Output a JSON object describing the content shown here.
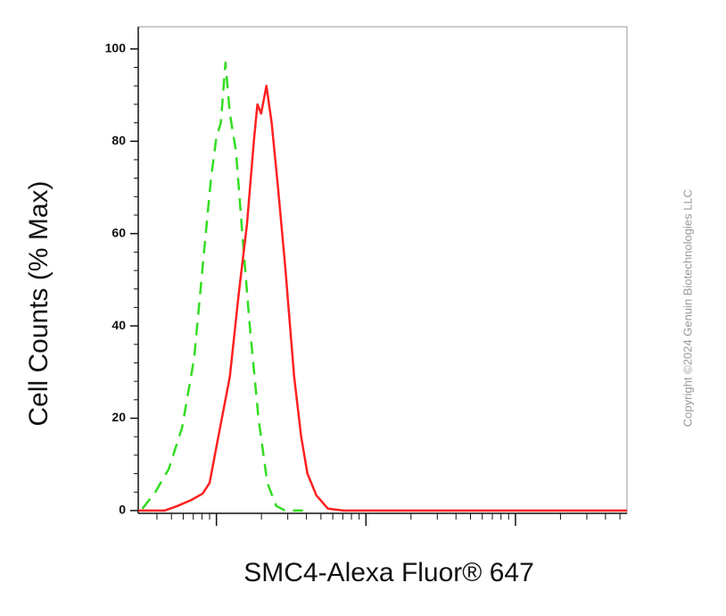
{
  "chart_data": {
    "type": "line",
    "xlabel": "SMC4-Alexa Fluor® 647",
    "ylabel": "Cell Counts (% Max)",
    "watermark": "Copyright ©2024 Genuin Biotechnologies LLC",
    "xscale": "log",
    "xlim": [
      3.0,
      5570
    ],
    "xticks": [
      10,
      100,
      1000
    ],
    "xminorticks": [
      4,
      5,
      6,
      7,
      8,
      9,
      20,
      30,
      40,
      50,
      60,
      70,
      80,
      90,
      200,
      300,
      400,
      500,
      600,
      700,
      800,
      900,
      2000,
      3000,
      4000,
      5000
    ],
    "ylim": [
      -0.6,
      104.8
    ],
    "yticks": [
      0,
      20,
      40,
      60,
      80,
      100
    ],
    "yminorticks": [
      4,
      8,
      12,
      16,
      24,
      28,
      32,
      36,
      44,
      48,
      52,
      56,
      64,
      68,
      72,
      76,
      84,
      88,
      92,
      96
    ],
    "series": [
      {
        "color": "#33dd22",
        "dashed": true,
        "x": [
          3.2,
          3.9,
          4.8,
          5.9,
          7.1,
          8.1,
          9.2,
          10,
          10.7,
          11.5,
          12.3,
          13.5,
          14.9,
          16.6,
          19.1,
          21.9,
          25.1,
          28.8,
          37.9
        ],
        "values": [
          0.4,
          4,
          9,
          18,
          33,
          53,
          72,
          81,
          84,
          97,
          86,
          78,
          60,
          41,
          20,
          6,
          1,
          0,
          0
        ]
      },
      {
        "color": "#ff2020",
        "dashed": false,
        "x": [
          3.0,
          4.5,
          5.5,
          6.8,
          8.1,
          9.0,
          10.3,
          12.3,
          14.1,
          16.0,
          17.8,
          18.8,
          19.9,
          21.6,
          23.4,
          25.8,
          28.8,
          33.1,
          36.9,
          40.6,
          46.6,
          55.7,
          70.5,
          172,
          681,
          5570
        ],
        "values": [
          0,
          0,
          1,
          2.3,
          3.7,
          6,
          16,
          29,
          47,
          62,
          80,
          88,
          86,
          92,
          84,
          70,
          53,
          29,
          16,
          8,
          3.3,
          0.4,
          0,
          0,
          0,
          0
        ]
      }
    ]
  }
}
